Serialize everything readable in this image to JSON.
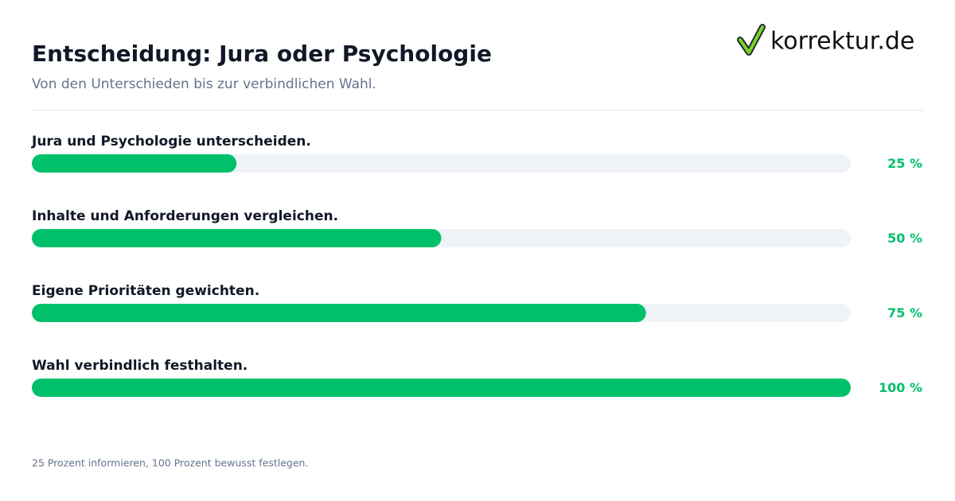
{
  "logo": "korrektur.de",
  "chart_data": {
    "type": "progress",
    "title": "Entscheidung: Jura oder Psychologie",
    "subtitle": "Von den Unterschieden bis zur verbindlichen Wahl.",
    "categories": [
      "Jura und Psychologie unterscheiden.",
      "Inhalte und Anforderungen vergleichen.",
      "Eigene Prioritäten gewichten.",
      "Wahl verbindlich festhalten."
    ],
    "values": [
      25,
      50,
      75,
      100
    ],
    "value_labels": [
      "25 %",
      "50 %",
      "75 %",
      "100 %"
    ],
    "xlim": [
      0,
      100
    ],
    "color": "#00c16a",
    "track_color": "#eff3f8",
    "footnote": "25 Prozent informieren, 100 Prozent bewusst festlegen."
  }
}
